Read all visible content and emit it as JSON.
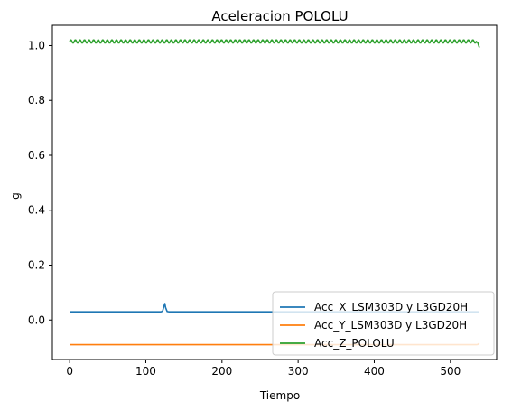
{
  "chart_data": {
    "type": "line",
    "title": "Aceleracion POLOLU",
    "xlabel": "Tiempo",
    "ylabel": "g",
    "xlim": [
      -22.7,
      560.7
    ],
    "ylim": [
      -0.144,
      1.074
    ],
    "xticks": [
      0,
      100,
      200,
      300,
      400,
      500
    ],
    "yticks": [
      0.0,
      0.2,
      0.4,
      0.6,
      0.8,
      1.0
    ],
    "xtick_labels": [
      "0",
      "100",
      "200",
      "300",
      "400",
      "500"
    ],
    "ytick_labels": [
      "0.0",
      "0.2",
      "0.4",
      "0.6",
      "0.8",
      "1.0"
    ],
    "grid": false,
    "legend_position": "lower-right",
    "series": [
      {
        "name": "Acc_X_LSM303D y L3GD20H",
        "color": "#1f77b4",
        "x": [
          0,
          120,
          122,
          124,
          125,
          126,
          128,
          130,
          538
        ],
        "y": [
          0.03,
          0.03,
          0.032,
          0.052,
          0.06,
          0.045,
          0.031,
          0.03,
          0.03
        ]
      },
      {
        "name": "Acc_Y_LSM303D y L3GD20H",
        "color": "#ff7f0e",
        "x": [
          0,
          534,
          536,
          538
        ],
        "y": [
          -0.09,
          -0.09,
          -0.089,
          -0.085
        ]
      },
      {
        "name": "Acc_Z_POLOLU",
        "color": "#2ca02c",
        "pattern": "oscillating",
        "x_start": 0,
        "x_end": 534,
        "baseline": 1.015,
        "amplitude": 0.006,
        "period": 6,
        "tail_x": [
          536,
          538
        ],
        "tail_y": [
          1.01,
          0.993
        ]
      }
    ]
  }
}
